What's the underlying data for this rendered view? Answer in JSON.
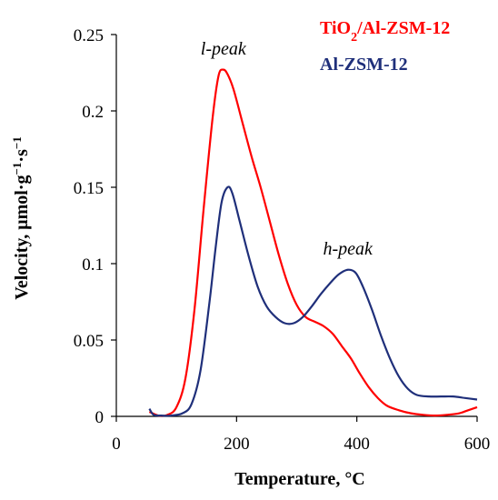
{
  "chart_data": {
    "type": "line",
    "title": "",
    "xlabel": "Temperature, °C",
    "ylabel_main": "Velocity, μmol·g",
    "ylabel_sup1": "−1",
    "ylabel_mid": "·s",
    "ylabel_sup2": "−1",
    "xlim": [
      0,
      600
    ],
    "ylim": [
      0,
      0.25
    ],
    "xticks": [
      0,
      200,
      400,
      600
    ],
    "yticks": [
      0,
      0.05,
      0.1,
      0.15,
      0.2,
      0.25
    ],
    "xtick_labels": [
      "0",
      "200",
      "400",
      "600"
    ],
    "ytick_labels": [
      "0",
      "0.05",
      "0.1",
      "0.15",
      "0.2",
      "0.25"
    ],
    "grid": false,
    "legend_position": "top-right",
    "series": [
      {
        "name_main": "TiO",
        "name_sub": "2",
        "name_rest": "/Al-ZSM-12",
        "color": "#ff0000",
        "points": [
          [
            55,
            0.003
          ],
          [
            70,
            0.0005
          ],
          [
            85,
            0.001
          ],
          [
            100,
            0.006
          ],
          [
            115,
            0.025
          ],
          [
            130,
            0.07
          ],
          [
            145,
            0.135
          ],
          [
            160,
            0.195
          ],
          [
            170,
            0.223
          ],
          [
            178,
            0.227
          ],
          [
            185,
            0.224
          ],
          [
            195,
            0.214
          ],
          [
            210,
            0.192
          ],
          [
            225,
            0.17
          ],
          [
            240,
            0.15
          ],
          [
            255,
            0.128
          ],
          [
            270,
            0.106
          ],
          [
            285,
            0.087
          ],
          [
            300,
            0.073
          ],
          [
            315,
            0.065
          ],
          [
            330,
            0.062
          ],
          [
            345,
            0.059
          ],
          [
            360,
            0.054
          ],
          [
            375,
            0.046
          ],
          [
            390,
            0.038
          ],
          [
            405,
            0.028
          ],
          [
            420,
            0.019
          ],
          [
            435,
            0.012
          ],
          [
            450,
            0.007
          ],
          [
            470,
            0.004
          ],
          [
            490,
            0.002
          ],
          [
            510,
            0.001
          ],
          [
            530,
            0.0005
          ],
          [
            550,
            0.001
          ],
          [
            570,
            0.002
          ],
          [
            585,
            0.004
          ],
          [
            600,
            0.006
          ]
        ]
      },
      {
        "name_main": "Al-ZSM-12",
        "name_sub": "",
        "name_rest": "",
        "color": "#1f2f7a",
        "points": [
          [
            55,
            0.005
          ],
          [
            62,
            0.001
          ],
          [
            75,
            0.0005
          ],
          [
            90,
            0.0005
          ],
          [
            110,
            0.002
          ],
          [
            125,
            0.008
          ],
          [
            140,
            0.03
          ],
          [
            155,
            0.075
          ],
          [
            165,
            0.11
          ],
          [
            175,
            0.14
          ],
          [
            185,
            0.15
          ],
          [
            193,
            0.146
          ],
          [
            205,
            0.128
          ],
          [
            220,
            0.105
          ],
          [
            235,
            0.085
          ],
          [
            250,
            0.072
          ],
          [
            265,
            0.065
          ],
          [
            280,
            0.061
          ],
          [
            295,
            0.061
          ],
          [
            310,
            0.065
          ],
          [
            325,
            0.072
          ],
          [
            340,
            0.08
          ],
          [
            355,
            0.087
          ],
          [
            370,
            0.093
          ],
          [
            385,
            0.096
          ],
          [
            398,
            0.094
          ],
          [
            410,
            0.085
          ],
          [
            425,
            0.07
          ],
          [
            440,
            0.053
          ],
          [
            455,
            0.038
          ],
          [
            470,
            0.026
          ],
          [
            485,
            0.018
          ],
          [
            500,
            0.014
          ],
          [
            520,
            0.013
          ],
          [
            540,
            0.013
          ],
          [
            560,
            0.013
          ],
          [
            580,
            0.012
          ],
          [
            600,
            0.011
          ]
        ]
      }
    ],
    "annotations": [
      {
        "text": "l-peak",
        "x": 178,
        "y": 0.237
      },
      {
        "text": "h-peak",
        "x": 385,
        "y": 0.106
      }
    ]
  }
}
